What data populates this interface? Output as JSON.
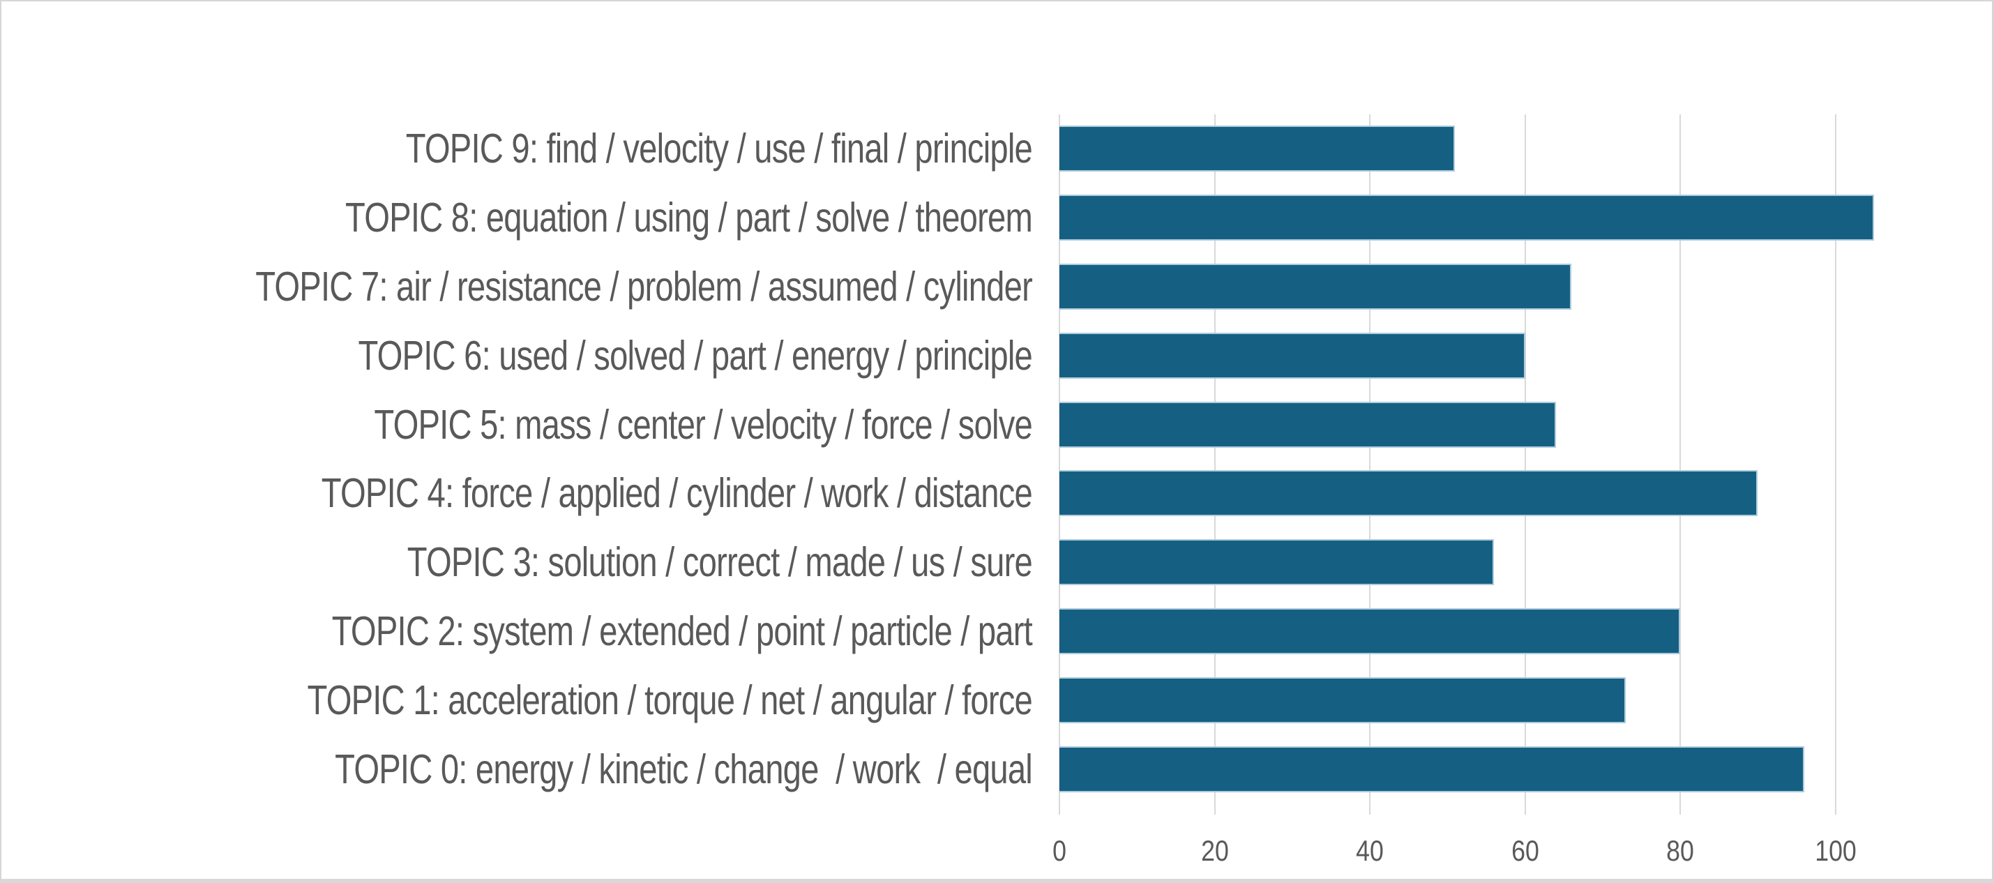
{
  "chart_data": {
    "type": "bar",
    "orientation": "horizontal",
    "title": "",
    "categories": [
      "TOPIC 9: find / velocity / use / final / principle",
      "TOPIC 8: equation / using / part / solve / theorem",
      "TOPIC 7: air / resistance / problem / assumed / cylinder",
      "TOPIC 6: used / solved / part / energy / principle",
      "TOPIC 5: mass / center / velocity / force / solve",
      "TOPIC 4: force / applied / cylinder / work / distance",
      "TOPIC 3: solution / correct / made / us / sure",
      "TOPIC 2: system / extended / point / particle / part",
      "TOPIC 1: acceleration / torque / net / angular / force",
      "TOPIC 0: energy / kinetic / change  / work  / equal"
    ],
    "categories_order": "top-to-bottom",
    "values": [
      51,
      105,
      66,
      60,
      64,
      90,
      56,
      80,
      73,
      96
    ],
    "x_ticks": [
      0,
      20,
      40,
      60,
      80,
      100
    ],
    "xlim": [
      0,
      110
    ],
    "xlabel": "",
    "ylabel": "",
    "grid": "vertical-major",
    "legend": "none",
    "colors": {
      "bar": "#156082",
      "bar_border": "#aecbdc",
      "gridline": "#d9d9d9",
      "tick": "#d9d9d9",
      "text": "#595959",
      "background": "#ffffff",
      "frame_border": "#d6d6d6"
    }
  }
}
